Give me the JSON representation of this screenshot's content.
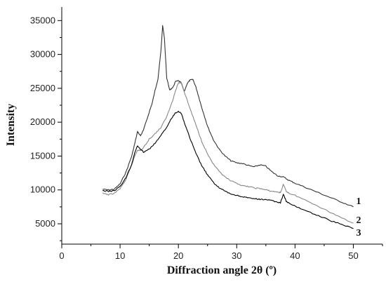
{
  "chart_data": {
    "type": "line",
    "title": "",
    "xlabel": "Diffraction angle 2θ (º)",
    "ylabel": "Intensity",
    "xlim": [
      0,
      55
    ],
    "ylim": [
      2000,
      37000
    ],
    "xticks": [
      0,
      10,
      20,
      30,
      40,
      50
    ],
    "yticks": [
      5000,
      10000,
      15000,
      20000,
      25000,
      30000,
      35000
    ],
    "grid": false,
    "legend": "none",
    "series": [
      {
        "name": "1",
        "color": "#333333",
        "points": [
          [
            7,
            10100
          ],
          [
            8,
            10000
          ],
          [
            9,
            10100
          ],
          [
            10,
            10900
          ],
          [
            11,
            12600
          ],
          [
            12,
            15000
          ],
          [
            12.5,
            16800
          ],
          [
            13,
            18600
          ],
          [
            13.5,
            18000
          ],
          [
            14,
            18800
          ],
          [
            15,
            21500
          ],
          [
            15.5,
            22800
          ],
          [
            16,
            24700
          ],
          [
            16.5,
            26400
          ],
          [
            17,
            30500
          ],
          [
            17.3,
            34200
          ],
          [
            17.6,
            32500
          ],
          [
            18,
            26500
          ],
          [
            18.5,
            24800
          ],
          [
            19,
            25000
          ],
          [
            19.5,
            26000
          ],
          [
            20,
            26100
          ],
          [
            20.5,
            25800
          ],
          [
            21,
            24500
          ],
          [
            21.5,
            25700
          ],
          [
            22,
            26200
          ],
          [
            22.5,
            26300
          ],
          [
            23,
            25200
          ],
          [
            23.5,
            23700
          ],
          [
            24,
            22200
          ],
          [
            25,
            19400
          ],
          [
            26,
            17400
          ],
          [
            27,
            16000
          ],
          [
            28,
            15000
          ],
          [
            29,
            14300
          ],
          [
            30,
            14000
          ],
          [
            31,
            13900
          ],
          [
            32,
            13600
          ],
          [
            33,
            13400
          ],
          [
            34,
            13700
          ],
          [
            35,
            13500
          ],
          [
            36,
            12700
          ],
          [
            37,
            12100
          ],
          [
            38,
            11900
          ],
          [
            39,
            11400
          ],
          [
            40,
            11000
          ],
          [
            42,
            10300
          ],
          [
            44,
            9600
          ],
          [
            46,
            8900
          ],
          [
            48,
            8200
          ],
          [
            50,
            7500
          ]
        ]
      },
      {
        "name": "2",
        "color": "#888888",
        "points": [
          [
            7,
            9500
          ],
          [
            8,
            9300
          ],
          [
            9,
            9500
          ],
          [
            10,
            10200
          ],
          [
            11,
            11500
          ],
          [
            12,
            13700
          ],
          [
            12.5,
            15000
          ],
          [
            13,
            15900
          ],
          [
            13.5,
            15800
          ],
          [
            14,
            16200
          ],
          [
            15,
            17500
          ],
          [
            16,
            18300
          ],
          [
            17,
            19200
          ],
          [
            18,
            20800
          ],
          [
            19,
            23200
          ],
          [
            19.5,
            24600
          ],
          [
            20,
            25800
          ],
          [
            20.5,
            25800
          ],
          [
            21,
            24500
          ],
          [
            22,
            22000
          ],
          [
            23,
            19600
          ],
          [
            24,
            17200
          ],
          [
            25,
            15300
          ],
          [
            26,
            13800
          ],
          [
            27,
            12700
          ],
          [
            28,
            11900
          ],
          [
            29,
            11300
          ],
          [
            30,
            11000
          ],
          [
            31,
            10600
          ],
          [
            32,
            10500
          ],
          [
            33,
            10300
          ],
          [
            34,
            10200
          ],
          [
            35,
            10000
          ],
          [
            36,
            9800
          ],
          [
            37,
            9700
          ],
          [
            37.5,
            9600
          ],
          [
            38,
            10800
          ],
          [
            38.5,
            9800
          ],
          [
            39,
            9500
          ],
          [
            40,
            9200
          ],
          [
            42,
            8400
          ],
          [
            44,
            7600
          ],
          [
            46,
            6700
          ],
          [
            48,
            5900
          ],
          [
            50,
            5100
          ]
        ]
      },
      {
        "name": "3",
        "color": "#000000",
        "points": [
          [
            7,
            9900
          ],
          [
            8,
            9800
          ],
          [
            9,
            9900
          ],
          [
            10,
            10500
          ],
          [
            11,
            11800
          ],
          [
            12,
            13800
          ],
          [
            12.5,
            15500
          ],
          [
            13,
            16500
          ],
          [
            13.5,
            16000
          ],
          [
            14,
            15600
          ],
          [
            15,
            16000
          ],
          [
            16,
            16900
          ],
          [
            17,
            18000
          ],
          [
            18,
            19300
          ],
          [
            19,
            20800
          ],
          [
            19.5,
            21400
          ],
          [
            20,
            21600
          ],
          [
            20.5,
            21300
          ],
          [
            21,
            20000
          ],
          [
            22,
            17600
          ],
          [
            23,
            15400
          ],
          [
            24,
            13600
          ],
          [
            25,
            12200
          ],
          [
            26,
            11100
          ],
          [
            27,
            10300
          ],
          [
            28,
            9800
          ],
          [
            29,
            9400
          ],
          [
            30,
            9200
          ],
          [
            31,
            9000
          ],
          [
            32,
            8800
          ],
          [
            33,
            8700
          ],
          [
            34,
            8600
          ],
          [
            35,
            8600
          ],
          [
            36,
            8400
          ],
          [
            37,
            8200
          ],
          [
            37.5,
            8100
          ],
          [
            38,
            9400
          ],
          [
            38.5,
            8300
          ],
          [
            39,
            8000
          ],
          [
            40,
            7600
          ],
          [
            42,
            6900
          ],
          [
            44,
            6200
          ],
          [
            46,
            5500
          ],
          [
            48,
            4900
          ],
          [
            50,
            4300
          ]
        ]
      }
    ]
  }
}
